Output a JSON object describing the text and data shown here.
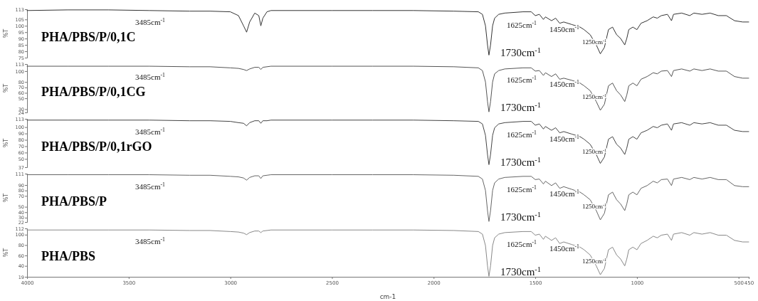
{
  "chart_data": [
    {
      "type": "line",
      "xlim": [
        4000,
        450
      ],
      "tick_labels": "y",
      "ylim": [
        75,
        113
      ],
      "yticks": [
        75,
        80,
        85,
        90,
        95,
        100,
        105,
        113
      ],
      "ylabel": "%T",
      "x": [
        4000,
        3800,
        3600,
        3400,
        3200,
        3100,
        3000,
        2960,
        2935,
        2920,
        2905,
        2880,
        2860,
        2850,
        2840,
        2820,
        2800,
        2500,
        2300,
        2100,
        1900,
        1780,
        1760,
        1745,
        1735,
        1728,
        1720,
        1710,
        1700,
        1680,
        1650,
        1560,
        1520,
        1500,
        1480,
        1460,
        1450,
        1420,
        1400,
        1380,
        1360,
        1320,
        1280,
        1260,
        1230,
        1200,
        1180,
        1160,
        1140,
        1120,
        1100,
        1080,
        1060,
        1050,
        1040,
        1020,
        1000,
        980,
        950,
        920,
        900,
        880,
        850,
        830,
        820,
        780,
        740,
        720,
        680,
        640,
        600,
        560,
        520,
        480,
        450
      ],
      "series": [
        {
          "name": "PHA/PBS/P/0,1C",
          "color": "#333333",
          "values": [
            112,
            112.5,
            112.5,
            112,
            111.5,
            111.5,
            111,
            108,
            100,
            95,
            103,
            110,
            108,
            100,
            106,
            111,
            112,
            112,
            112,
            112,
            111.5,
            111,
            109,
            100,
            85,
            77,
            85,
            100,
            106,
            109,
            110,
            111,
            111,
            108,
            109,
            105,
            107,
            104,
            106,
            102,
            103,
            101,
            99,
            97,
            93,
            85,
            78,
            83,
            97,
            99,
            93,
            90,
            85,
            90,
            97,
            99,
            97,
            102,
            104,
            107,
            106,
            108,
            109,
            104,
            109,
            110,
            108,
            110,
            109,
            110,
            108,
            108,
            104,
            103,
            103
          ]
        }
      ],
      "annotations": [
        "3485cm$^{-1}$",
        "1625cm$^{-1}$",
        "1450cm$^{-1}$",
        "1250cm$^{-1}$",
        "1730cm$^{-1}$"
      ]
    },
    {
      "type": "line",
      "xlim": [
        4000,
        450
      ],
      "tick_labels": "y",
      "ylim": [
        24,
        113
      ],
      "yticks": [
        24,
        30,
        50,
        60,
        70,
        80,
        100,
        113
      ],
      "ylabel": "%T",
      "x": [
        4000,
        3800,
        3600,
        3400,
        3200,
        3100,
        3000,
        2960,
        2935,
        2920,
        2905,
        2880,
        2860,
        2850,
        2840,
        2820,
        2800,
        2500,
        2300,
        2100,
        1900,
        1780,
        1760,
        1745,
        1735,
        1728,
        1720,
        1710,
        1700,
        1680,
        1650,
        1560,
        1520,
        1500,
        1480,
        1460,
        1450,
        1420,
        1400,
        1380,
        1360,
        1320,
        1280,
        1260,
        1230,
        1200,
        1180,
        1160,
        1140,
        1120,
        1100,
        1080,
        1060,
        1050,
        1040,
        1020,
        1000,
        980,
        950,
        920,
        900,
        880,
        850,
        830,
        820,
        780,
        740,
        720,
        680,
        640,
        600,
        560,
        520,
        480,
        450
      ],
      "series": [
        {
          "name": "PHA/PBS/P/0,1CG",
          "color": "#555555",
          "values": [
            109,
            109,
            109,
            109,
            108,
            108,
            106,
            105,
            103,
            101,
            104,
            107,
            107,
            103,
            107,
            108,
            109,
            109,
            109,
            109,
            108,
            106,
            101,
            80,
            44,
            25,
            44,
            80,
            95,
            101,
            104,
            106,
            106,
            100,
            101,
            92,
            97,
            90,
            95,
            85,
            87,
            83,
            78,
            73,
            64,
            44,
            28,
            39,
            73,
            78,
            64,
            56,
            44,
            56,
            73,
            78,
            73,
            85,
            90,
            97,
            95,
            100,
            101,
            90,
            101,
            104,
            100,
            104,
            101,
            104,
            100,
            100,
            90,
            87,
            87
          ]
        }
      ],
      "annotations": [
        "3485cm$^{-1}$",
        "1625cm$^{-1}$",
        "1450cm$^{-1}$",
        "1250cm$^{-1}$",
        "1730cm$^{-1}$"
      ]
    },
    {
      "type": "line",
      "xlim": [
        4000,
        450
      ],
      "tick_labels": "y",
      "ylim": [
        37,
        113
      ],
      "yticks": [
        37,
        50,
        60,
        70,
        80,
        90,
        100,
        113
      ],
      "ylabel": "%T",
      "x": [
        4000,
        3800,
        3600,
        3400,
        3200,
        3100,
        3000,
        2960,
        2935,
        2920,
        2905,
        2880,
        2860,
        2850,
        2840,
        2820,
        2800,
        2500,
        2300,
        2100,
        1900,
        1780,
        1760,
        1745,
        1735,
        1728,
        1720,
        1710,
        1700,
        1680,
        1650,
        1560,
        1520,
        1500,
        1480,
        1460,
        1450,
        1420,
        1400,
        1380,
        1360,
        1320,
        1280,
        1260,
        1230,
        1200,
        1180,
        1160,
        1140,
        1120,
        1100,
        1080,
        1060,
        1050,
        1040,
        1020,
        1000,
        980,
        950,
        920,
        900,
        880,
        850,
        830,
        820,
        780,
        740,
        720,
        680,
        640,
        600,
        560,
        520,
        480,
        450
      ],
      "series": [
        {
          "name": "PHA/PBS/P/0,1rGO",
          "color": "#444444",
          "values": [
            111,
            111,
            111,
            111,
            110,
            110,
            109,
            107,
            106,
            102,
            107,
            110,
            110,
            106,
            110,
            110,
            111,
            111,
            111,
            111,
            110,
            109,
            105,
            87,
            57,
            41,
            57,
            87,
            99,
            105,
            107,
            109,
            109,
            103,
            105,
            97,
            101,
            95,
            99,
            91,
            93,
            89,
            85,
            81,
            73,
            57,
            43,
            53,
            81,
            85,
            73,
            67,
            57,
            67,
            81,
            85,
            81,
            91,
            95,
            101,
            99,
            103,
            105,
            95,
            105,
            107,
            103,
            107,
            105,
            107,
            103,
            103,
            95,
            93,
            93
          ]
        }
      ],
      "annotations": [
        "3485cm$^{-1}$",
        "1625cm$^{-1}$",
        "1450cm$^{-1}$",
        "1250cm$^{-1}$",
        "1730cm$^{-1}$"
      ]
    },
    {
      "type": "line",
      "xlim": [
        4000,
        450
      ],
      "tick_labels": "y",
      "ylim": [
        22,
        111
      ],
      "yticks": [
        22,
        30,
        40,
        50,
        70,
        80,
        90,
        111
      ],
      "ylabel": "%T",
      "x": [
        4000,
        3800,
        3600,
        3400,
        3200,
        3100,
        3000,
        2960,
        2935,
        2920,
        2905,
        2880,
        2860,
        2850,
        2840,
        2820,
        2800,
        2500,
        2300,
        2100,
        1900,
        1780,
        1760,
        1745,
        1735,
        1728,
        1720,
        1710,
        1700,
        1680,
        1650,
        1560,
        1520,
        1500,
        1480,
        1460,
        1450,
        1420,
        1400,
        1380,
        1360,
        1320,
        1280,
        1260,
        1230,
        1200,
        1180,
        1160,
        1140,
        1120,
        1100,
        1080,
        1060,
        1050,
        1040,
        1020,
        1000,
        980,
        950,
        920,
        900,
        880,
        850,
        830,
        820,
        780,
        740,
        720,
        680,
        640,
        600,
        560,
        520,
        480,
        450
      ],
      "series": [
        {
          "name": "PHA/PBS/P",
          "color": "#666666",
          "values": [
            109,
            109,
            109,
            109,
            108,
            108,
            106,
            105,
            103,
            99,
            104,
            107,
            107,
            102,
            107,
            108,
            109,
            109,
            109,
            109,
            108,
            106,
            101,
            80,
            43,
            23,
            43,
            80,
            94,
            101,
            104,
            106,
            106,
            100,
            101,
            92,
            97,
            89,
            94,
            84,
            87,
            82,
            77,
            72,
            63,
            43,
            26,
            38,
            72,
            77,
            63,
            55,
            43,
            55,
            72,
            77,
            72,
            84,
            89,
            97,
            94,
            100,
            101,
            89,
            101,
            104,
            100,
            104,
            101,
            104,
            100,
            100,
            89,
            87,
            87
          ]
        }
      ],
      "annotations": [
        "3485cm$^{-1}$",
        "1625cm$^{-1}$",
        "1450cm$^{-1}$",
        "1250cm$^{-1}$",
        "1730cm$^{-1}$"
      ]
    },
    {
      "type": "line",
      "xlim": [
        4000,
        450
      ],
      "xticks": [
        4000,
        3500,
        3000,
        2500,
        2000,
        1500,
        1000,
        500,
        450
      ],
      "xlabel": "cm-1",
      "ylim": [
        19,
        112
      ],
      "yticks": [
        19,
        40,
        60,
        80,
        100,
        112
      ],
      "ylabel": "%T",
      "x": [
        4000,
        3800,
        3600,
        3400,
        3200,
        3100,
        3000,
        2960,
        2935,
        2920,
        2905,
        2880,
        2860,
        2850,
        2840,
        2820,
        2800,
        2500,
        2300,
        2100,
        1900,
        1780,
        1760,
        1745,
        1735,
        1728,
        1720,
        1710,
        1700,
        1680,
        1650,
        1560,
        1520,
        1500,
        1480,
        1460,
        1450,
        1420,
        1400,
        1380,
        1360,
        1320,
        1280,
        1260,
        1230,
        1200,
        1180,
        1160,
        1140,
        1120,
        1100,
        1080,
        1060,
        1050,
        1040,
        1020,
        1000,
        980,
        950,
        920,
        900,
        880,
        850,
        830,
        820,
        780,
        740,
        720,
        680,
        640,
        600,
        560,
        520,
        480,
        450
      ],
      "series": [
        {
          "name": "PHA/PBS",
          "color": "#888888",
          "values": [
            109,
            109,
            109,
            109,
            108,
            108,
            106,
            105,
            103,
            100,
            104,
            107,
            107,
            104,
            107,
            108,
            109,
            109,
            109,
            109,
            108,
            106,
            101,
            79,
            40,
            20,
            40,
            79,
            94,
            101,
            104,
            106,
            106,
            99,
            101,
            91,
            97,
            89,
            94,
            83,
            86,
            81,
            76,
            71,
            61,
            40,
            23,
            35,
            71,
            76,
            61,
            53,
            40,
            53,
            71,
            76,
            71,
            83,
            89,
            97,
            94,
            99,
            101,
            89,
            101,
            104,
            99,
            104,
            101,
            104,
            99,
            99,
            89,
            86,
            86
          ]
        }
      ],
      "annotations": [
        "3485cm$^{-1}$",
        "1625cm$^{-1}$",
        "1450cm$^{-1}$",
        "1250cm$^{-1}$",
        "1730cm$^{-1}$"
      ]
    }
  ]
}
